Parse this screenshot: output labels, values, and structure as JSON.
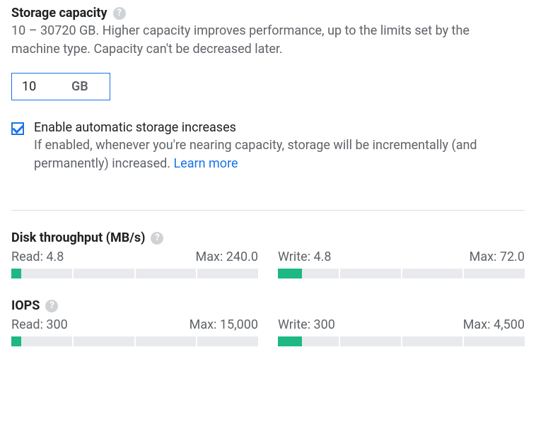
{
  "storage": {
    "heading": "Storage capacity",
    "description": "10 – 30720 GB. Higher capacity improves performance, up to the limits set by the machine type. Capacity can't be decreased later.",
    "value": "10",
    "unit": "GB"
  },
  "auto_increase": {
    "checked": true,
    "label": "Enable automatic storage increases",
    "description": "If enabled, whenever you're nearing capacity, storage will be incrementally (and permanently) increased. ",
    "link_text": "Learn more"
  },
  "throughput": {
    "heading": "Disk throughput (MB/s)",
    "read": {
      "label": "Read: 4.8",
      "max_label": "Max: 240.0",
      "fill_pct": 4
    },
    "write": {
      "label": "Write: 4.8",
      "max_label": "Max: 72.0",
      "fill_pct": 10
    }
  },
  "iops": {
    "heading": "IOPS",
    "read": {
      "label": "Read: 300",
      "max_label": "Max: 15,000",
      "fill_pct": 4
    },
    "write": {
      "label": "Write: 300",
      "max_label": "Max: 4,500",
      "fill_pct": 10
    }
  },
  "style": {
    "segments": 4,
    "accent": "#1a73e8",
    "bar_fill": "#1db883",
    "bar_bg": "#e8eaed"
  }
}
